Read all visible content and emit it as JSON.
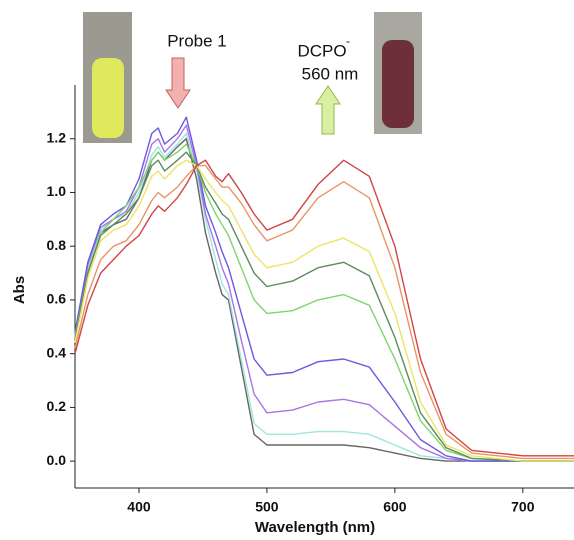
{
  "chart_data": {
    "type": "line",
    "annotations": {
      "probe": "Probe 1",
      "product": "DCPO",
      "product_charge": "-",
      "wavelength": "560 nm"
    },
    "xlabel": "Wavelength (nm)",
    "ylabel": "Abs",
    "x": [
      350,
      360,
      370,
      380,
      390,
      400,
      410,
      415,
      420,
      430,
      437,
      445,
      452,
      460,
      465,
      470,
      480,
      490,
      500,
      520,
      540,
      560,
      580,
      600,
      620,
      640,
      660,
      700,
      740
    ],
    "xlim": [
      350,
      740
    ],
    "xticks": [
      400,
      500,
      600,
      700
    ],
    "ylim": [
      -0.1,
      1.4
    ],
    "yticks": [
      {
        "value": 0,
        "label": "0.0"
      },
      0.2,
      0.4,
      0.6,
      0.8,
      {
        "value": 1,
        "label": "1.0"
      },
      1.2
    ],
    "series": [
      {
        "color": "#666666",
        "values": [
          0.45,
          0.72,
          0.85,
          0.88,
          0.9,
          0.98,
          1.12,
          1.15,
          1.12,
          1.17,
          1.2,
          1.05,
          0.85,
          0.7,
          0.62,
          0.6,
          0.35,
          0.1,
          0.06,
          0.06,
          0.06,
          0.06,
          0.05,
          0.03,
          0.01,
          0.0,
          0.0,
          0.0,
          0.0
        ]
      },
      {
        "color": "#9fe6e0",
        "values": [
          0.46,
          0.72,
          0.86,
          0.9,
          0.92,
          1.0,
          1.14,
          1.17,
          1.13,
          1.18,
          1.22,
          1.08,
          0.9,
          0.75,
          0.66,
          0.62,
          0.38,
          0.14,
          0.1,
          0.1,
          0.11,
          0.11,
          0.1,
          0.06,
          0.02,
          0.01,
          0.0,
          0.0,
          0.0
        ]
      },
      {
        "color": "#a874e6",
        "values": [
          0.47,
          0.73,
          0.87,
          0.9,
          0.93,
          1.02,
          1.18,
          1.2,
          1.15,
          1.2,
          1.25,
          1.1,
          0.92,
          0.8,
          0.72,
          0.66,
          0.45,
          0.25,
          0.18,
          0.19,
          0.22,
          0.23,
          0.21,
          0.13,
          0.05,
          0.01,
          0.0,
          0.0,
          0.0
        ]
      },
      {
        "color": "#6a5ae0",
        "values": [
          0.48,
          0.74,
          0.88,
          0.92,
          0.95,
          1.05,
          1.22,
          1.24,
          1.18,
          1.22,
          1.28,
          1.12,
          0.95,
          0.85,
          0.78,
          0.72,
          0.55,
          0.38,
          0.32,
          0.33,
          0.37,
          0.38,
          0.35,
          0.22,
          0.08,
          0.02,
          0.0,
          0.0,
          0.0
        ]
      },
      {
        "color": "#7fd46e",
        "values": [
          0.46,
          0.7,
          0.85,
          0.9,
          0.95,
          1.02,
          1.12,
          1.15,
          1.12,
          1.15,
          1.18,
          1.1,
          1.0,
          0.92,
          0.88,
          0.84,
          0.72,
          0.6,
          0.55,
          0.56,
          0.6,
          0.62,
          0.58,
          0.38,
          0.15,
          0.04,
          0.01,
          0.0,
          0.0
        ]
      },
      {
        "color": "#5c8c5c",
        "values": [
          0.45,
          0.7,
          0.84,
          0.88,
          0.92,
          0.98,
          1.1,
          1.12,
          1.08,
          1.12,
          1.15,
          1.1,
          1.02,
          0.96,
          0.92,
          0.9,
          0.8,
          0.7,
          0.65,
          0.67,
          0.72,
          0.74,
          0.69,
          0.46,
          0.18,
          0.05,
          0.01,
          0.0,
          0.0
        ]
      },
      {
        "color": "#ece466",
        "values": [
          0.44,
          0.68,
          0.82,
          0.86,
          0.88,
          0.95,
          1.06,
          1.08,
          1.05,
          1.1,
          1.12,
          1.1,
          1.05,
          1.0,
          0.97,
          0.95,
          0.86,
          0.77,
          0.72,
          0.74,
          0.8,
          0.83,
          0.78,
          0.55,
          0.22,
          0.06,
          0.02,
          0.0,
          0.0
        ]
      },
      {
        "color": "#e99464",
        "values": [
          0.42,
          0.62,
          0.75,
          0.8,
          0.82,
          0.88,
          0.97,
          1.0,
          0.98,
          1.02,
          1.06,
          1.1,
          1.1,
          1.05,
          1.02,
          1.02,
          0.96,
          0.88,
          0.82,
          0.86,
          0.98,
          1.04,
          0.98,
          0.72,
          0.33,
          0.1,
          0.03,
          0.01,
          0.01
        ]
      },
      {
        "color": "#d24444",
        "values": [
          0.4,
          0.58,
          0.7,
          0.75,
          0.8,
          0.84,
          0.92,
          0.95,
          0.93,
          0.98,
          1.03,
          1.1,
          1.12,
          1.06,
          1.04,
          1.07,
          1.0,
          0.92,
          0.86,
          0.9,
          1.03,
          1.12,
          1.06,
          0.8,
          0.38,
          0.12,
          0.04,
          0.02,
          0.02
        ]
      }
    ]
  }
}
